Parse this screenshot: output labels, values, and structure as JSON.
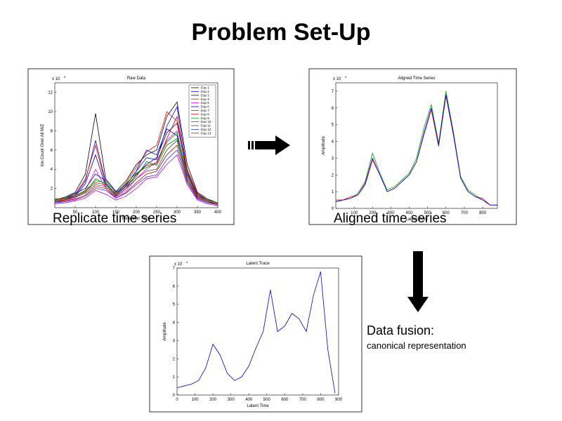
{
  "title": "Problem Set-Up",
  "captions": {
    "raw": "Replicate time series",
    "aligned": "Aligned time series",
    "fusion": "Data fusion:",
    "fusion_detail": "canonical representation"
  },
  "chart_data": [
    {
      "type": "line",
      "title": "Raw Data",
      "xlabel": "Retention Time",
      "ylabel": "Ion Count Over All M/Z",
      "y_multiplier": {
        "base": "x 10",
        "exponent": "5"
      },
      "xlim": [
        0,
        400
      ],
      "xticks": [
        50,
        100,
        150,
        200,
        250,
        300,
        350,
        400
      ],
      "ylim": [
        0,
        13
      ],
      "yticks": [
        2,
        4,
        6,
        8,
        10,
        12
      ],
      "legend": "upper right",
      "x": [
        0,
        25,
        50,
        75,
        100,
        125,
        150,
        175,
        200,
        225,
        250,
        275,
        300,
        325,
        350,
        375,
        400
      ],
      "series": [
        {
          "name": "Exp 1",
          "color": "#000000",
          "values": [
            0.8,
            1.1,
            1.6,
            3.5,
            9.8,
            3.0,
            1.7,
            2.8,
            4.5,
            5.5,
            6.0,
            9.5,
            11.0,
            4.5,
            1.6,
            0.9,
            0.5
          ]
        },
        {
          "name": "Exp 2",
          "color": "#0000ff",
          "values": [
            0.7,
            0.9,
            1.3,
            2.8,
            7.0,
            2.6,
            1.4,
            2.3,
            3.8,
            5.2,
            5.0,
            8.5,
            10.5,
            3.8,
            1.3,
            0.7,
            0.4
          ]
        },
        {
          "name": "Exp 3",
          "color": "#000080",
          "values": [
            0.6,
            0.8,
            1.2,
            2.5,
            5.5,
            2.2,
            1.2,
            2.0,
            3.5,
            4.5,
            5.2,
            7.8,
            8.8,
            3.5,
            1.2,
            0.7,
            0.4
          ]
        },
        {
          "name": "Exp 4",
          "color": "#ff0000",
          "values": [
            0.9,
            1.0,
            1.4,
            3.0,
            6.5,
            2.4,
            1.5,
            2.6,
            4.2,
            5.8,
            6.5,
            10.0,
            9.0,
            4.0,
            1.5,
            0.8,
            0.5
          ]
        },
        {
          "name": "Exp 5",
          "color": "#ff00ff",
          "values": [
            0.5,
            0.7,
            1.0,
            1.8,
            4.0,
            2.0,
            1.1,
            1.8,
            3.0,
            4.0,
            4.8,
            7.0,
            8.0,
            3.0,
            1.0,
            0.6,
            0.3
          ]
        },
        {
          "name": "Exp 6",
          "color": "#0000c0",
          "values": [
            0.8,
            1.0,
            1.5,
            2.0,
            3.5,
            2.8,
            1.6,
            2.4,
            3.8,
            6.0,
            5.5,
            8.2,
            7.5,
            3.6,
            1.4,
            0.8,
            0.5
          ]
        },
        {
          "name": "Exp 7",
          "color": "#008000",
          "values": [
            0.7,
            0.9,
            1.2,
            1.6,
            3.0,
            2.5,
            1.3,
            2.2,
            3.2,
            4.8,
            4.4,
            6.5,
            7.2,
            3.2,
            1.2,
            0.7,
            0.4
          ]
        },
        {
          "name": "Exp 8",
          "color": "#c00000",
          "values": [
            0.6,
            0.7,
            0.9,
            1.3,
            2.2,
            2.0,
            1.0,
            1.6,
            2.6,
            3.5,
            3.8,
            5.5,
            6.5,
            2.8,
            1.0,
            0.6,
            0.3
          ]
        },
        {
          "name": "Exp 9",
          "color": "#00a000",
          "values": [
            0.8,
            1.0,
            1.3,
            1.8,
            2.8,
            2.6,
            1.4,
            2.5,
            3.6,
            4.2,
            4.6,
            6.8,
            7.8,
            3.4,
            1.3,
            0.8,
            0.5
          ]
        },
        {
          "name": "Exp 10",
          "color": "#c000c0",
          "values": [
            0.4,
            0.5,
            0.7,
            1.0,
            1.8,
            1.4,
            0.8,
            1.2,
            2.0,
            3.0,
            3.2,
            4.5,
            5.5,
            2.4,
            0.8,
            0.4,
            0.2
          ]
        },
        {
          "name": "Exp 11",
          "color": "#404040",
          "values": [
            0.6,
            0.8,
            1.1,
            1.5,
            2.4,
            2.2,
            1.2,
            2.0,
            3.0,
            3.8,
            4.0,
            6.0,
            7.0,
            3.0,
            1.1,
            0.6,
            0.4
          ]
        },
        {
          "name": "Exp 12",
          "color": "#3030ff",
          "values": [
            0.5,
            0.6,
            0.8,
            1.2,
            2.0,
            1.8,
            1.0,
            1.5,
            2.4,
            3.2,
            3.4,
            5.0,
            6.0,
            2.6,
            0.9,
            0.5,
            0.3
          ]
        },
        {
          "name": "Exp 13",
          "color": "#e00000",
          "values": [
            0.7,
            0.9,
            1.2,
            1.7,
            2.6,
            2.4,
            1.3,
            2.2,
            3.4,
            4.4,
            4.6,
            7.2,
            9.5,
            3.6,
            1.2,
            0.7,
            0.4
          ]
        }
      ]
    },
    {
      "type": "line",
      "title": "Aligned Time Series",
      "xlabel": "Latent Time",
      "ylabel": "Amplitude",
      "y_multiplier": {
        "base": "x 10",
        "exponent": "4"
      },
      "xlim": [
        0,
        880
      ],
      "xticks": [
        100,
        200,
        300,
        400,
        500,
        600,
        700,
        800
      ],
      "ylim": [
        0,
        7.5
      ],
      "yticks": [
        0,
        1,
        2,
        3,
        4,
        5,
        6,
        7
      ],
      "x": [
        0,
        40,
        80,
        120,
        160,
        200,
        240,
        280,
        320,
        360,
        400,
        440,
        480,
        520,
        560,
        600,
        640,
        680,
        720,
        760,
        800,
        840,
        880
      ],
      "series": [
        {
          "color": "#00a000",
          "values": [
            0.4,
            0.5,
            0.6,
            0.9,
            1.6,
            3.3,
            2.1,
            1.1,
            1.3,
            1.7,
            2.1,
            3.0,
            4.8,
            6.2,
            3.9,
            7.0,
            4.6,
            1.9,
            1.1,
            0.8,
            0.5,
            0.2,
            0.2
          ]
        },
        {
          "color": "#ff0000",
          "values": [
            0.5,
            0.5,
            0.7,
            0.8,
            1.4,
            2.9,
            2.0,
            1.0,
            1.2,
            1.6,
            2.0,
            2.8,
            4.4,
            5.9,
            3.7,
            6.7,
            4.4,
            1.8,
            1.0,
            0.7,
            0.6,
            0.2,
            0.2
          ]
        },
        {
          "color": "#0000ff",
          "values": [
            0.4,
            0.5,
            0.6,
            0.8,
            1.5,
            3.0,
            2.0,
            1.0,
            1.2,
            1.6,
            2.0,
            2.8,
            4.5,
            6.0,
            3.8,
            6.8,
            4.5,
            1.8,
            1.0,
            0.7,
            0.5,
            0.2,
            0.2
          ]
        }
      ]
    },
    {
      "type": "line",
      "title": "Latent Trace",
      "xlabel": "Latent Time",
      "ylabel": "Amplitude",
      "y_multiplier": {
        "base": "x 10",
        "exponent": "4"
      },
      "xlim": [
        0,
        900
      ],
      "xticks": [
        0,
        100,
        200,
        300,
        400,
        500,
        600,
        700,
        800,
        900
      ],
      "ylim": [
        0,
        7
      ],
      "yticks": [
        0,
        1,
        2,
        3,
        4,
        5,
        6,
        7
      ],
      "x": [
        0,
        40,
        80,
        120,
        160,
        200,
        240,
        280,
        320,
        360,
        400,
        440,
        480,
        520,
        560,
        600,
        640,
        680,
        720,
        760,
        800,
        840,
        880
      ],
      "series": [
        {
          "color": "#0000cc",
          "values": [
            0.4,
            0.5,
            0.6,
            0.8,
            1.5,
            2.8,
            2.2,
            1.2,
            0.8,
            1.0,
            1.6,
            2.6,
            3.5,
            5.8,
            3.5,
            3.8,
            4.5,
            4.2,
            3.5,
            5.5,
            6.8,
            2.5,
            0.1
          ]
        }
      ]
    }
  ]
}
